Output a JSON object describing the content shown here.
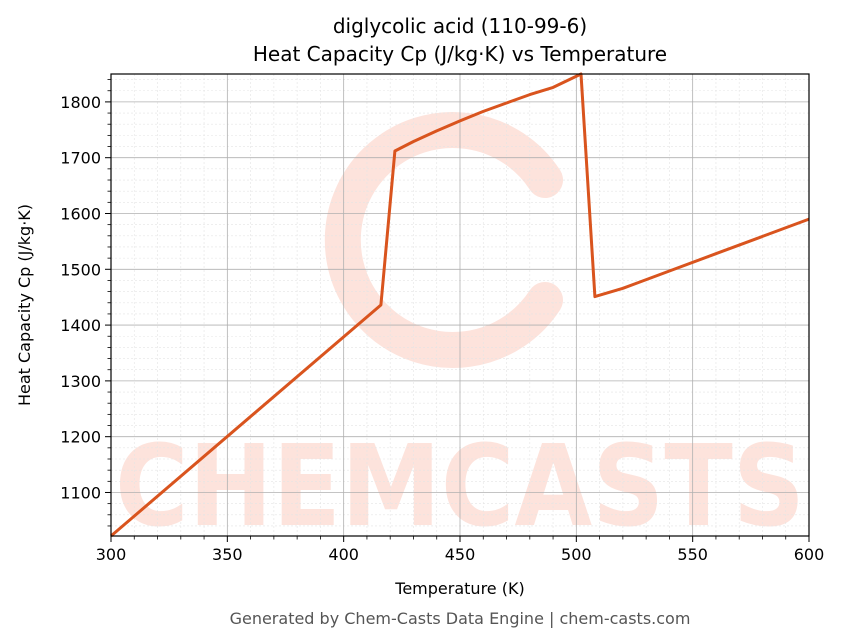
{
  "chart_data": {
    "type": "line",
    "title": "diglycolic acid (110-99-6)",
    "subtitle": "Heat Capacity Cp (J/kg·K) vs Temperature",
    "xlabel": "Temperature (K)",
    "ylabel": "Heat Capacity Cp (J/kg·K)",
    "xlim": [
      300,
      600
    ],
    "ylim": [
      1022,
      1850
    ],
    "xticks": [
      300,
      350,
      400,
      450,
      500,
      550,
      600
    ],
    "yticks": [
      1100,
      1200,
      1300,
      1400,
      1500,
      1600,
      1700,
      1800
    ],
    "grid": true,
    "legend": "none",
    "series": [
      {
        "color": "#d9541e",
        "x": [
          300,
          416,
          422,
          430,
          440,
          450,
          460,
          470,
          480,
          490,
          502,
          508,
          520,
          540,
          560,
          580,
          600
        ],
        "y": [
          1022,
          1436,
          1712,
          1729,
          1748,
          1766,
          1783,
          1798,
          1813,
          1826,
          1850,
          1451,
          1466,
          1497,
          1528,
          1559,
          1590
        ]
      }
    ]
  },
  "watermark": {
    "text": "CHEMCASTS",
    "color": "#fde3dc"
  },
  "footer": "Generated by Chem-Casts Data Engine | chem-casts.com"
}
